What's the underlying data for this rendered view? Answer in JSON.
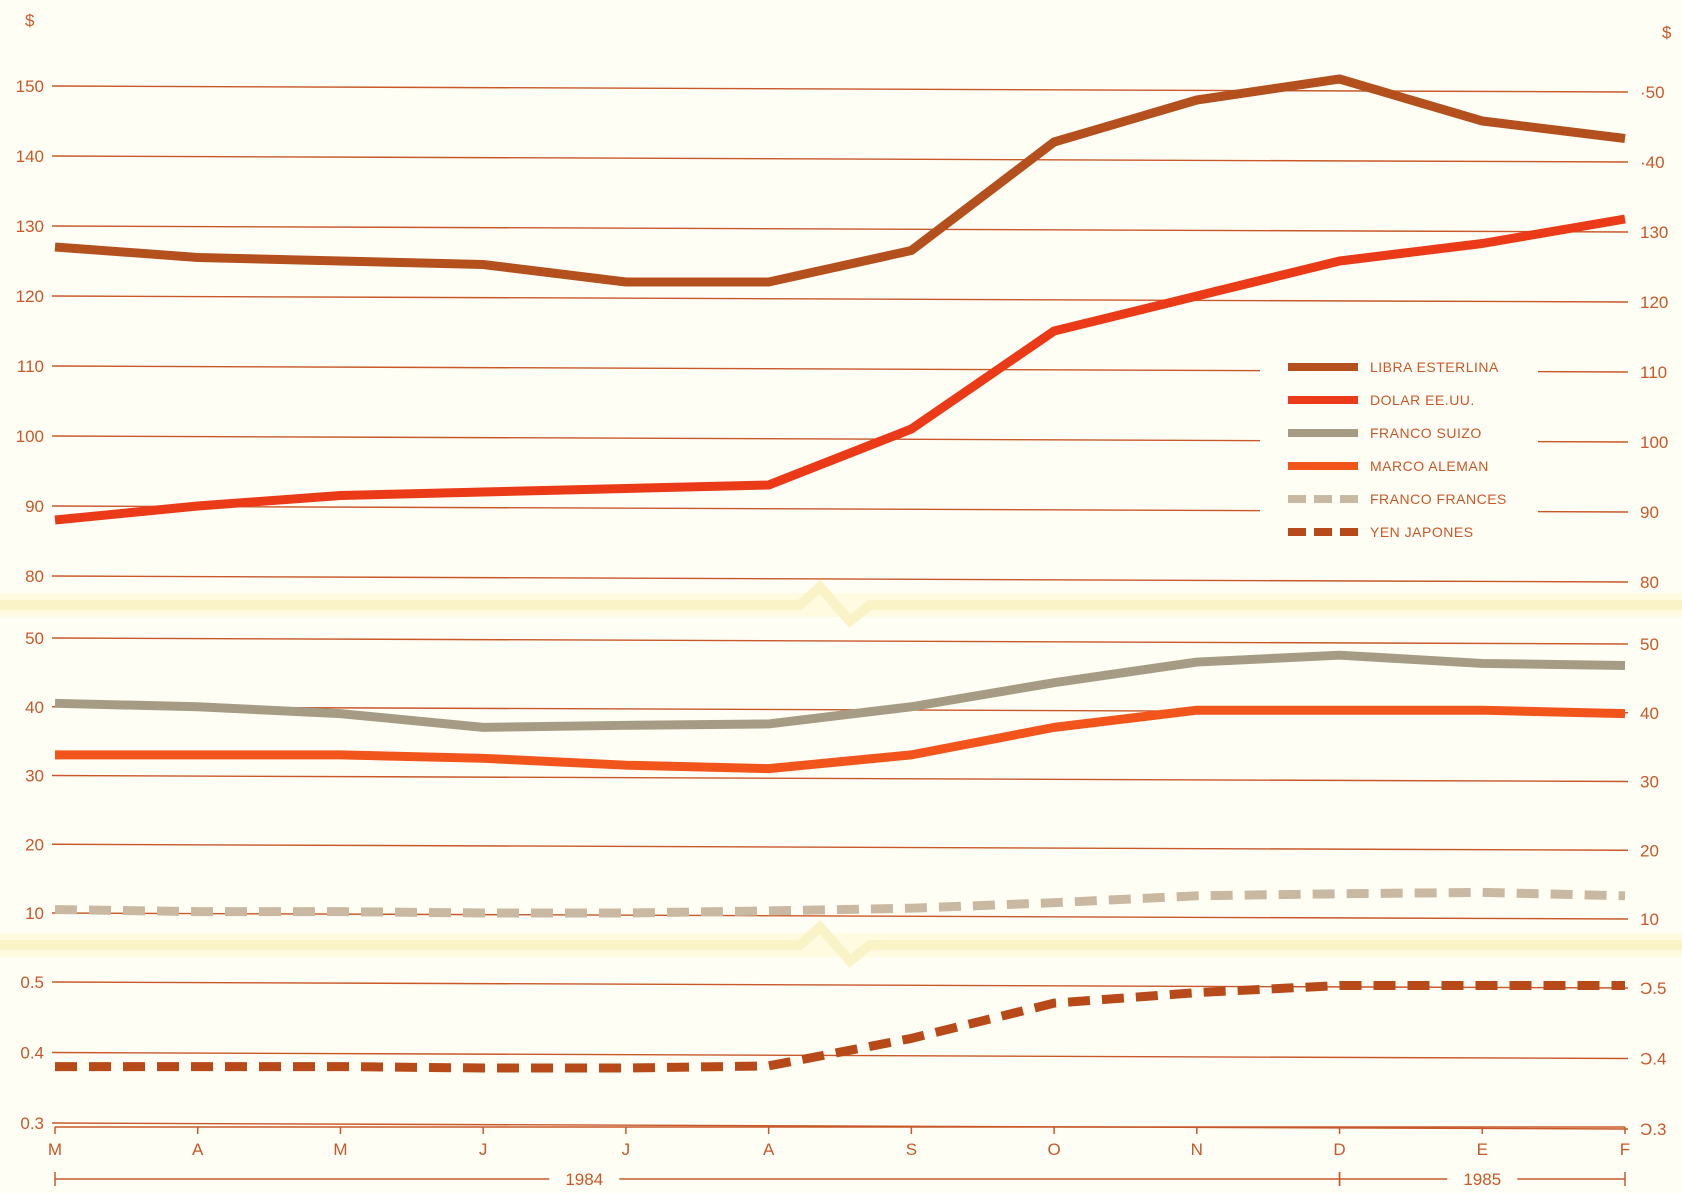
{
  "chart_data": {
    "type": "line",
    "title": "",
    "xlabel": "",
    "ylabel": "",
    "y_unit_label": "$",
    "categories": [
      "M",
      "A",
      "M",
      "J",
      "J",
      "A",
      "S",
      "O",
      "N",
      "D",
      "E",
      "F"
    ],
    "period_labels": [
      {
        "label": "1984",
        "from": 0,
        "to": 9
      },
      {
        "label": "1985",
        "from": 9,
        "to": 11
      }
    ],
    "axis_break": "y",
    "panels": [
      {
        "ylim": [
          80,
          150
        ],
        "ticks": [
          80,
          90,
          100,
          110,
          120,
          130,
          140,
          150
        ]
      },
      {
        "ylim": [
          10,
          50
        ],
        "ticks": [
          10,
          20,
          30,
          40,
          50
        ]
      },
      {
        "ylim": [
          0.3,
          0.5
        ],
        "ticks": [
          "0.3",
          "0.4",
          "0.5"
        ]
      }
    ],
    "right_tick_labels": {
      "panel0": [
        "80",
        "90",
        "100",
        "110",
        "120",
        "130",
        "·40",
        "·50"
      ],
      "panel1": [
        "10",
        "20",
        "30",
        "40",
        "50"
      ],
      "panel2": [
        "Ɔ.3",
        "Ɔ.4",
        "Ɔ.5"
      ]
    },
    "legend_position": "right",
    "grid": true,
    "series": [
      {
        "name": "LIBRA ESTERLINA",
        "panel": 0,
        "style": "solid",
        "color": "#b4501e",
        "values": [
          127,
          125.5,
          125,
          124.5,
          122,
          122,
          126.5,
          142,
          148,
          151,
          145,
          142.5
        ]
      },
      {
        "name": "DOLAR EE.UU.",
        "panel": 0,
        "style": "solid",
        "color": "#ea3a17",
        "values": [
          88,
          90,
          91.5,
          92,
          92.5,
          93,
          101,
          115,
          120,
          125,
          127.5,
          131
        ]
      },
      {
        "name": "FRANCO SUIZO",
        "panel": 1,
        "style": "solid",
        "color": "#a69c85",
        "values": [
          40.5,
          40,
          39,
          37,
          37.3,
          37.5,
          40,
          43.5,
          46.5,
          47.5,
          46.3,
          46
        ]
      },
      {
        "name": "MARCO ALEMAN",
        "panel": 1,
        "style": "solid",
        "color": "#f2551c",
        "values": [
          33,
          33,
          33,
          32.5,
          31.5,
          31,
          33,
          37,
          39.5,
          39.5,
          39.5,
          39
        ]
      },
      {
        "name": "FRANCO FRANCES",
        "panel": 1,
        "style": "dashed",
        "color": "#c9b9a2",
        "values": [
          10.5,
          10.2,
          10.2,
          10,
          10,
          10.3,
          10.7,
          11.5,
          12.5,
          12.8,
          13,
          12.5
        ]
      },
      {
        "name": "YEN JAPONES",
        "panel": 2,
        "style": "dashed",
        "color": "#b84a19",
        "values": [
          0.38,
          0.38,
          0.38,
          0.378,
          0.378,
          0.381,
          0.42,
          0.47,
          0.485,
          0.495,
          0.495,
          0.495
        ]
      }
    ]
  }
}
